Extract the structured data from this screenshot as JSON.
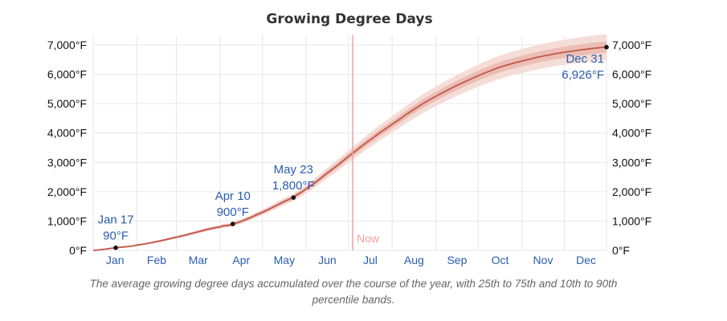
{
  "title": "Growing Degree Days",
  "caption": "The average growing degree days accumulated over the course of the year, with 25th to 75th and 10th to 90th percentile bands.",
  "now_label": "Now",
  "colors": {
    "median": "#c0584a",
    "band_inner": "#e9b5ac",
    "band_outer": "#f5dcd7",
    "now_line": "#f4a0a0",
    "month_label": "#2a5db0",
    "annotation": "#2a5db0",
    "grid": "#e6e6e6",
    "axis_text": "#111111"
  },
  "chart_data": {
    "type": "area",
    "title": "Growing Degree Days",
    "xlabel": "",
    "ylabel": "",
    "x_ticks": [
      "Jan",
      "Feb",
      "Mar",
      "Apr",
      "May",
      "Jun",
      "Jul",
      "Aug",
      "Sep",
      "Oct",
      "Nov",
      "Dec"
    ],
    "y_ticks": [
      "0°F",
      "1,000°F",
      "2,000°F",
      "3,000°F",
      "4,000°F",
      "5,000°F",
      "6,000°F",
      "7,000°F"
    ],
    "ylim": [
      0,
      7000
    ],
    "xlim_days": [
      1,
      365
    ],
    "now_day": 185,
    "grid": true,
    "series": [
      {
        "role": "median",
        "x_day": [
          1,
          17,
          32,
          60,
          91,
          100,
          121,
          143,
          152,
          166,
          182,
          200,
          213,
          230,
          244,
          258,
          274,
          290,
          305,
          320,
          335,
          350,
          365
        ],
        "y": [
          0,
          90,
          180,
          450,
          800,
          900,
          1300,
          1800,
          2100,
          2600,
          3200,
          3850,
          4300,
          4850,
          5250,
          5600,
          5950,
          6250,
          6450,
          6620,
          6750,
          6850,
          6926
        ]
      }
    ],
    "bands": [
      {
        "percentiles": "10th to 90th",
        "spread_fraction": 0.06
      },
      {
        "percentiles": "25th to 75th",
        "spread_fraction": 0.025
      }
    ],
    "annotations": [
      {
        "day": 17,
        "date": "Jan 17",
        "value_label": "90°F",
        "y": 90
      },
      {
        "day": 100,
        "date": "Apr 10",
        "value_label": "900°F",
        "y": 900
      },
      {
        "day": 143,
        "date": "May 23",
        "value_label": "1,800°F",
        "y": 1800
      },
      {
        "day": 365,
        "date": "Dec 31",
        "value_label": "6,926°F",
        "y": 6926
      }
    ]
  }
}
